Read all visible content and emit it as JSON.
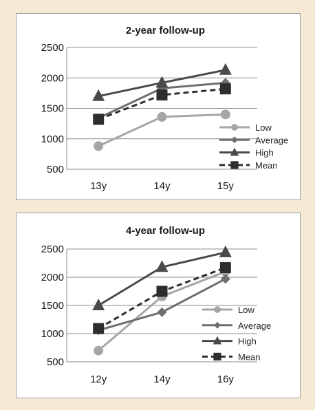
{
  "chart_data": [
    {
      "type": "line",
      "title": "2-year follow-up",
      "categories": [
        "13y",
        "14y",
        "15y"
      ],
      "ylim": [
        500,
        2500
      ],
      "yticks": [
        "500",
        "1000",
        "1500",
        "2000",
        "2500"
      ],
      "grid": true,
      "legend_position": "bottom-right",
      "series": [
        {
          "name": "Low",
          "values": [
            880,
            1360,
            1400
          ],
          "color": "#a6a6a6",
          "marker": "circle",
          "dash": false
        },
        {
          "name": "Average",
          "values": [
            1340,
            1830,
            1920
          ],
          "color": "#6e6e6e",
          "marker": "diamond",
          "dash": false
        },
        {
          "name": "High",
          "values": [
            1700,
            1920,
            2130
          ],
          "color": "#4a4a4a",
          "marker": "triangle",
          "dash": false
        },
        {
          "name": "Mean",
          "values": [
            1320,
            1720,
            1820
          ],
          "color": "#2e2e2e",
          "marker": "square",
          "dash": true
        }
      ]
    },
    {
      "type": "line",
      "title": "4-year follow-up",
      "categories": [
        "12y",
        "14y",
        "16y"
      ],
      "ylim": [
        500,
        2500
      ],
      "yticks": [
        "500",
        "1000",
        "1500",
        "2000",
        "2500"
      ],
      "grid": true,
      "legend_position": "bottom-right",
      "series": [
        {
          "name": "Low",
          "values": [
            700,
            1660,
            2100
          ],
          "color": "#a6a6a6",
          "marker": "circle",
          "dash": false
        },
        {
          "name": "Average",
          "values": [
            1060,
            1380,
            1970
          ],
          "color": "#6e6e6e",
          "marker": "diamond",
          "dash": false
        },
        {
          "name": "High",
          "values": [
            1500,
            2180,
            2440
          ],
          "color": "#4a4a4a",
          "marker": "triangle",
          "dash": false
        },
        {
          "name": "Mean",
          "values": [
            1090,
            1750,
            2170
          ],
          "color": "#2e2e2e",
          "marker": "square",
          "dash": true
        }
      ]
    }
  ]
}
